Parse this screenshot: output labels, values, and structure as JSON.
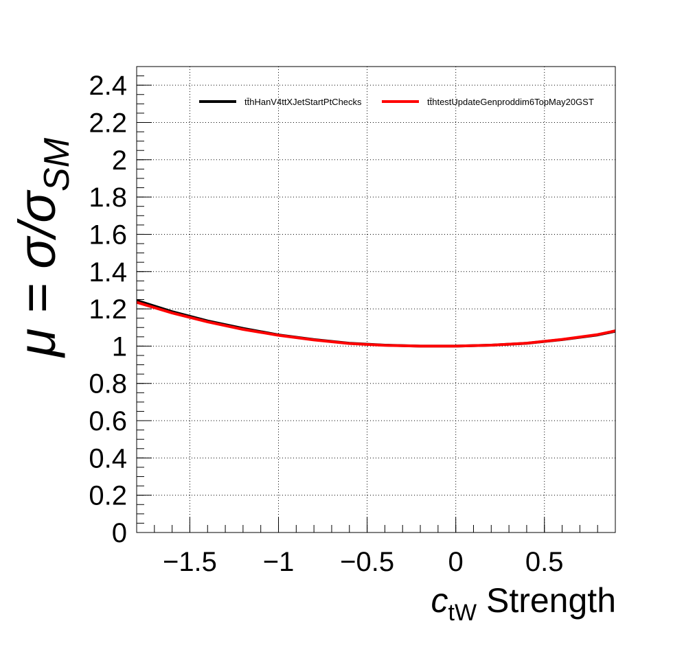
{
  "chart_data": {
    "type": "line",
    "xlabel": {
      "main": "c",
      "sub": "tW",
      "rest": " Strength"
    },
    "ylabel": {
      "mu": "μ = σ/σ",
      "sub": "SM"
    },
    "xlim": [
      -1.8,
      0.9
    ],
    "ylim": [
      0,
      2.5
    ],
    "x_ticks": [
      -1.5,
      -1,
      -0.5,
      0,
      0.5
    ],
    "x_tick_labels": [
      "−1.5",
      "−1",
      "−0.5",
      "0",
      "0.5"
    ],
    "y_ticks": [
      0,
      0.2,
      0.4,
      0.6,
      0.8,
      1,
      1.2,
      1.4,
      1.6,
      1.8,
      2,
      2.2,
      2.4
    ],
    "y_tick_labels": [
      "0",
      "0.2",
      "0.4",
      "0.6",
      "0.8",
      "1",
      "1.2",
      "1.4",
      "1.6",
      "1.8",
      "2",
      "2.2",
      "2.4"
    ],
    "grid": true,
    "legend_position": "top",
    "series": [
      {
        "name": "tt̄hHanV4ttXJetStartPtChecks",
        "color": "#000000",
        "x": [
          -1.8,
          -1.6,
          -1.4,
          -1.2,
          -1.0,
          -0.8,
          -0.6,
          -0.4,
          -0.2,
          0.0,
          0.2,
          0.4,
          0.6,
          0.8,
          0.9
        ],
        "y": [
          1.245,
          1.185,
          1.135,
          1.095,
          1.06,
          1.035,
          1.015,
          1.005,
          1.0,
          1.0,
          1.005,
          1.015,
          1.035,
          1.06,
          1.08
        ]
      },
      {
        "name": "tt̄htestUpdateGenproddim6TopMay20GST",
        "color": "#ff0000",
        "x": [
          -1.8,
          -1.6,
          -1.4,
          -1.2,
          -1.0,
          -0.8,
          -0.6,
          -0.4,
          -0.2,
          0.0,
          0.2,
          0.4,
          0.6,
          0.8,
          0.9
        ],
        "y": [
          1.235,
          1.178,
          1.13,
          1.09,
          1.058,
          1.033,
          1.014,
          1.004,
          1.0,
          1.0,
          1.005,
          1.016,
          1.036,
          1.062,
          1.082
        ]
      }
    ]
  }
}
